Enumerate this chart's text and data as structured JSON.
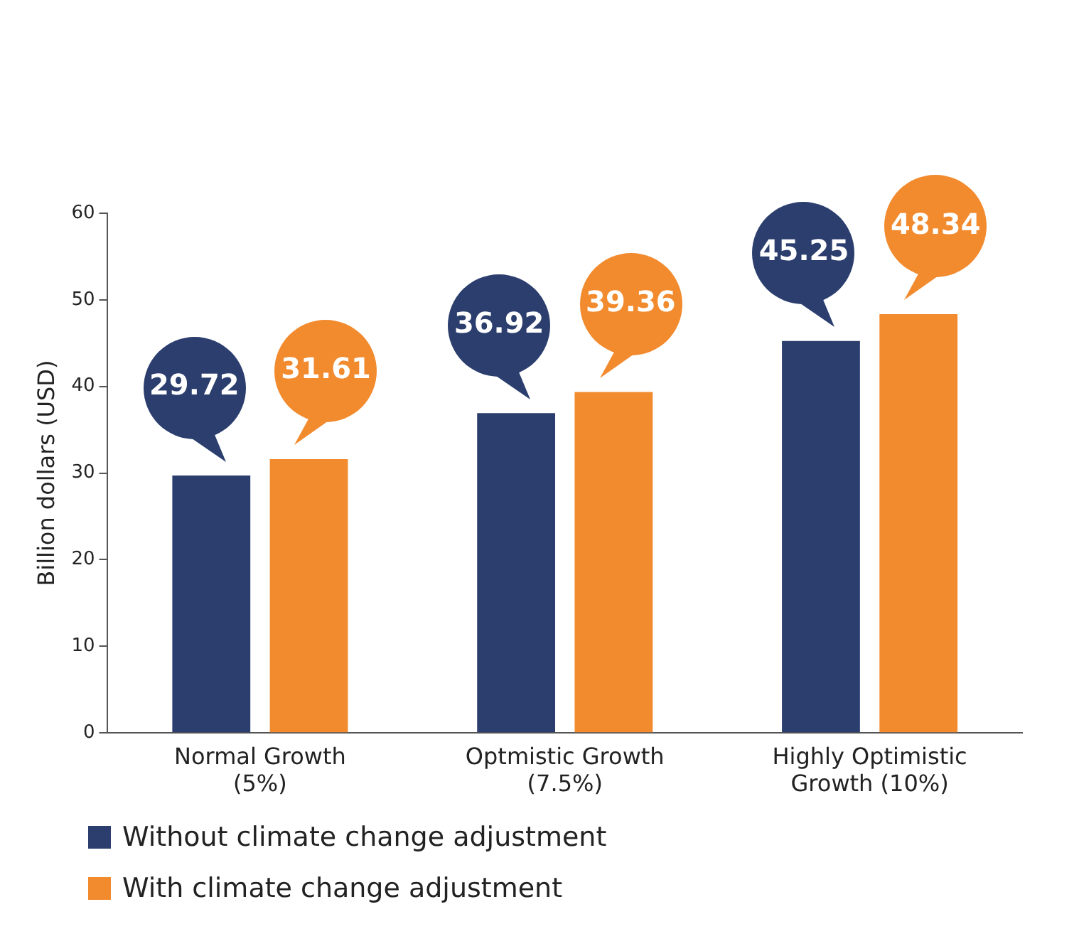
{
  "chart_data": {
    "type": "bar",
    "ylabel": "Billion dollars (USD)",
    "categories": [
      "Normal Growth (5%)",
      "Optmistic Growth (7.5%)",
      "Highly Optimistic Growth (10%)"
    ],
    "series": [
      {
        "name": "Without climate change adjustment",
        "color": "#2b3e6e",
        "values": [
          29.72,
          36.92,
          45.25
        ]
      },
      {
        "name": "With climate change adjustment",
        "color": "#f28a2e",
        "values": [
          31.61,
          39.36,
          48.34
        ]
      }
    ],
    "ylim": [
      0,
      60
    ],
    "yticks": [
      0,
      10,
      20,
      30,
      40,
      50,
      60
    ],
    "grid": false,
    "legend": "bottom left",
    "data_labels": true
  }
}
